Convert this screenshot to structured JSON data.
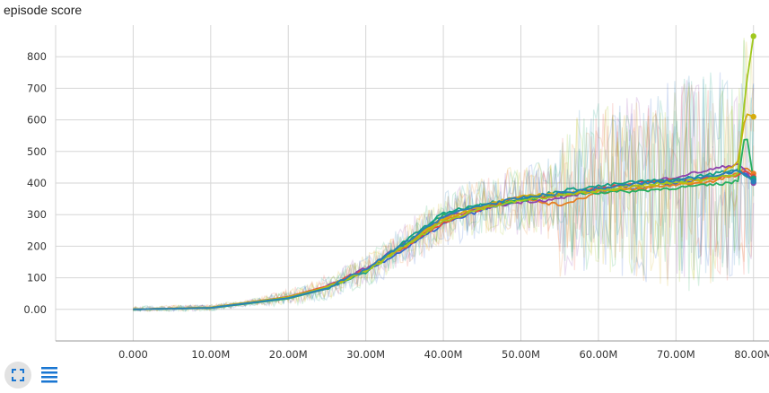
{
  "chart_data": {
    "type": "line",
    "title": "episode score",
    "xlabel": "",
    "ylabel": "",
    "xlim": [
      -10000000,
      82000000
    ],
    "ylim": [
      -100,
      900
    ],
    "x_ticks": [
      0,
      10000000,
      20000000,
      30000000,
      40000000,
      50000000,
      60000000,
      70000000,
      80000000
    ],
    "x_tick_labels": [
      "0.000",
      "10.00M",
      "20.00M",
      "30.00M",
      "40.00M",
      "50.00M",
      "60.00M",
      "70.00M",
      "80.00M"
    ],
    "y_ticks": [
      0,
      100,
      200,
      300,
      400,
      500,
      600,
      700,
      800
    ],
    "y_tick_labels": [
      "0.00",
      "100",
      "200",
      "300",
      "400",
      "500",
      "600",
      "700",
      "800"
    ],
    "grid": true,
    "legend": "none",
    "x_units": "steps",
    "series": [
      {
        "color": "#3366cc",
        "values": [
          [
            0,
            0
          ],
          [
            10000000,
            5
          ],
          [
            20000000,
            35
          ],
          [
            25000000,
            65
          ],
          [
            30000000,
            120
          ],
          [
            35000000,
            190
          ],
          [
            40000000,
            270
          ],
          [
            45000000,
            315
          ],
          [
            50000000,
            345
          ],
          [
            55000000,
            360
          ],
          [
            60000000,
            375
          ],
          [
            65000000,
            385
          ],
          [
            70000000,
            400
          ],
          [
            75000000,
            420
          ],
          [
            78000000,
            440
          ],
          [
            79000000,
            430
          ],
          [
            80000000,
            410
          ]
        ]
      },
      {
        "color": "#e67e22",
        "values": [
          [
            0,
            0
          ],
          [
            10000000,
            6
          ],
          [
            20000000,
            38
          ],
          [
            25000000,
            70
          ],
          [
            30000000,
            125
          ],
          [
            35000000,
            200
          ],
          [
            40000000,
            285
          ],
          [
            45000000,
            325
          ],
          [
            50000000,
            350
          ],
          [
            55000000,
            330
          ],
          [
            60000000,
            370
          ],
          [
            65000000,
            380
          ],
          [
            70000000,
            395
          ],
          [
            75000000,
            405
          ],
          [
            78000000,
            430
          ],
          [
            79000000,
            450
          ],
          [
            80000000,
            430
          ]
        ]
      },
      {
        "color": "#8e44ad",
        "values": [
          [
            0,
            0
          ],
          [
            10000000,
            5
          ],
          [
            20000000,
            36
          ],
          [
            25000000,
            72
          ],
          [
            30000000,
            130
          ],
          [
            35000000,
            210
          ],
          [
            40000000,
            290
          ],
          [
            45000000,
            320
          ],
          [
            50000000,
            340
          ],
          [
            55000000,
            350
          ],
          [
            60000000,
            380
          ],
          [
            65000000,
            395
          ],
          [
            70000000,
            420
          ],
          [
            75000000,
            445
          ],
          [
            78000000,
            460
          ],
          [
            79000000,
            440
          ],
          [
            80000000,
            400
          ]
        ]
      },
      {
        "color": "#27ae60",
        "values": [
          [
            0,
            0
          ],
          [
            10000000,
            4
          ],
          [
            20000000,
            34
          ],
          [
            25000000,
            66
          ],
          [
            30000000,
            122
          ],
          [
            35000000,
            205
          ],
          [
            40000000,
            300
          ],
          [
            45000000,
            330
          ],
          [
            50000000,
            345
          ],
          [
            55000000,
            365
          ],
          [
            60000000,
            370
          ],
          [
            65000000,
            375
          ],
          [
            70000000,
            385
          ],
          [
            75000000,
            395
          ],
          [
            78000000,
            405
          ],
          [
            79000000,
            570
          ],
          [
            80000000,
            410
          ]
        ]
      },
      {
        "color": "#e74c3c",
        "values": [
          [
            0,
            0
          ],
          [
            10000000,
            6
          ],
          [
            20000000,
            40
          ],
          [
            25000000,
            74
          ],
          [
            30000000,
            128
          ],
          [
            35000000,
            195
          ],
          [
            40000000,
            275
          ],
          [
            45000000,
            320
          ],
          [
            50000000,
            355
          ],
          [
            55000000,
            360
          ],
          [
            60000000,
            385
          ],
          [
            65000000,
            400
          ],
          [
            70000000,
            410
          ],
          [
            75000000,
            415
          ],
          [
            78000000,
            425
          ],
          [
            79000000,
            440
          ],
          [
            80000000,
            420
          ]
        ]
      },
      {
        "color": "#16a085",
        "values": [
          [
            0,
            0
          ],
          [
            10000000,
            5
          ],
          [
            20000000,
            37
          ],
          [
            25000000,
            68
          ],
          [
            30000000,
            118
          ],
          [
            35000000,
            215
          ],
          [
            40000000,
            305
          ],
          [
            45000000,
            335
          ],
          [
            50000000,
            350
          ],
          [
            55000000,
            375
          ],
          [
            60000000,
            390
          ],
          [
            65000000,
            405
          ],
          [
            70000000,
            410
          ],
          [
            75000000,
            430
          ],
          [
            78000000,
            445
          ],
          [
            79000000,
            420
          ],
          [
            80000000,
            415
          ]
        ]
      },
      {
        "color": "#d4ac0d",
        "values": [
          [
            0,
            0
          ],
          [
            10000000,
            5
          ],
          [
            20000000,
            39
          ],
          [
            25000000,
            71
          ],
          [
            30000000,
            124
          ],
          [
            35000000,
            200
          ],
          [
            40000000,
            290
          ],
          [
            45000000,
            325
          ],
          [
            50000000,
            360
          ],
          [
            55000000,
            365
          ],
          [
            60000000,
            375
          ],
          [
            65000000,
            390
          ],
          [
            70000000,
            400
          ],
          [
            75000000,
            410
          ],
          [
            78000000,
            470
          ],
          [
            79000000,
            620
          ],
          [
            80000000,
            610
          ]
        ]
      },
      {
        "color": "#a0c81e",
        "values": [
          [
            0,
            0
          ],
          [
            10000000,
            6
          ],
          [
            20000000,
            38
          ],
          [
            25000000,
            69
          ],
          [
            30000000,
            120
          ],
          [
            35000000,
            198
          ],
          [
            40000000,
            280
          ],
          [
            45000000,
            320
          ],
          [
            50000000,
            345
          ],
          [
            55000000,
            360
          ],
          [
            60000000,
            378
          ],
          [
            65000000,
            392
          ],
          [
            70000000,
            402
          ],
          [
            75000000,
            418
          ],
          [
            78000000,
            430
          ],
          [
            79000000,
            700
          ],
          [
            80000000,
            865
          ]
        ]
      },
      {
        "color": "#2980b9",
        "values": [
          [
            0,
            0
          ],
          [
            10000000,
            5
          ],
          [
            20000000,
            36
          ],
          [
            25000000,
            67
          ],
          [
            30000000,
            126
          ],
          [
            35000000,
            208
          ],
          [
            40000000,
            295
          ],
          [
            45000000,
            330
          ],
          [
            50000000,
            352
          ],
          [
            55000000,
            368
          ],
          [
            60000000,
            382
          ],
          [
            65000000,
            398
          ],
          [
            70000000,
            408
          ],
          [
            75000000,
            426
          ],
          [
            78000000,
            438
          ],
          [
            79000000,
            425
          ],
          [
            80000000,
            405
          ]
        ]
      }
    ]
  },
  "controls": {
    "expand_icon": "fullscreen-icon",
    "lines_icon": "data-table-icon"
  }
}
